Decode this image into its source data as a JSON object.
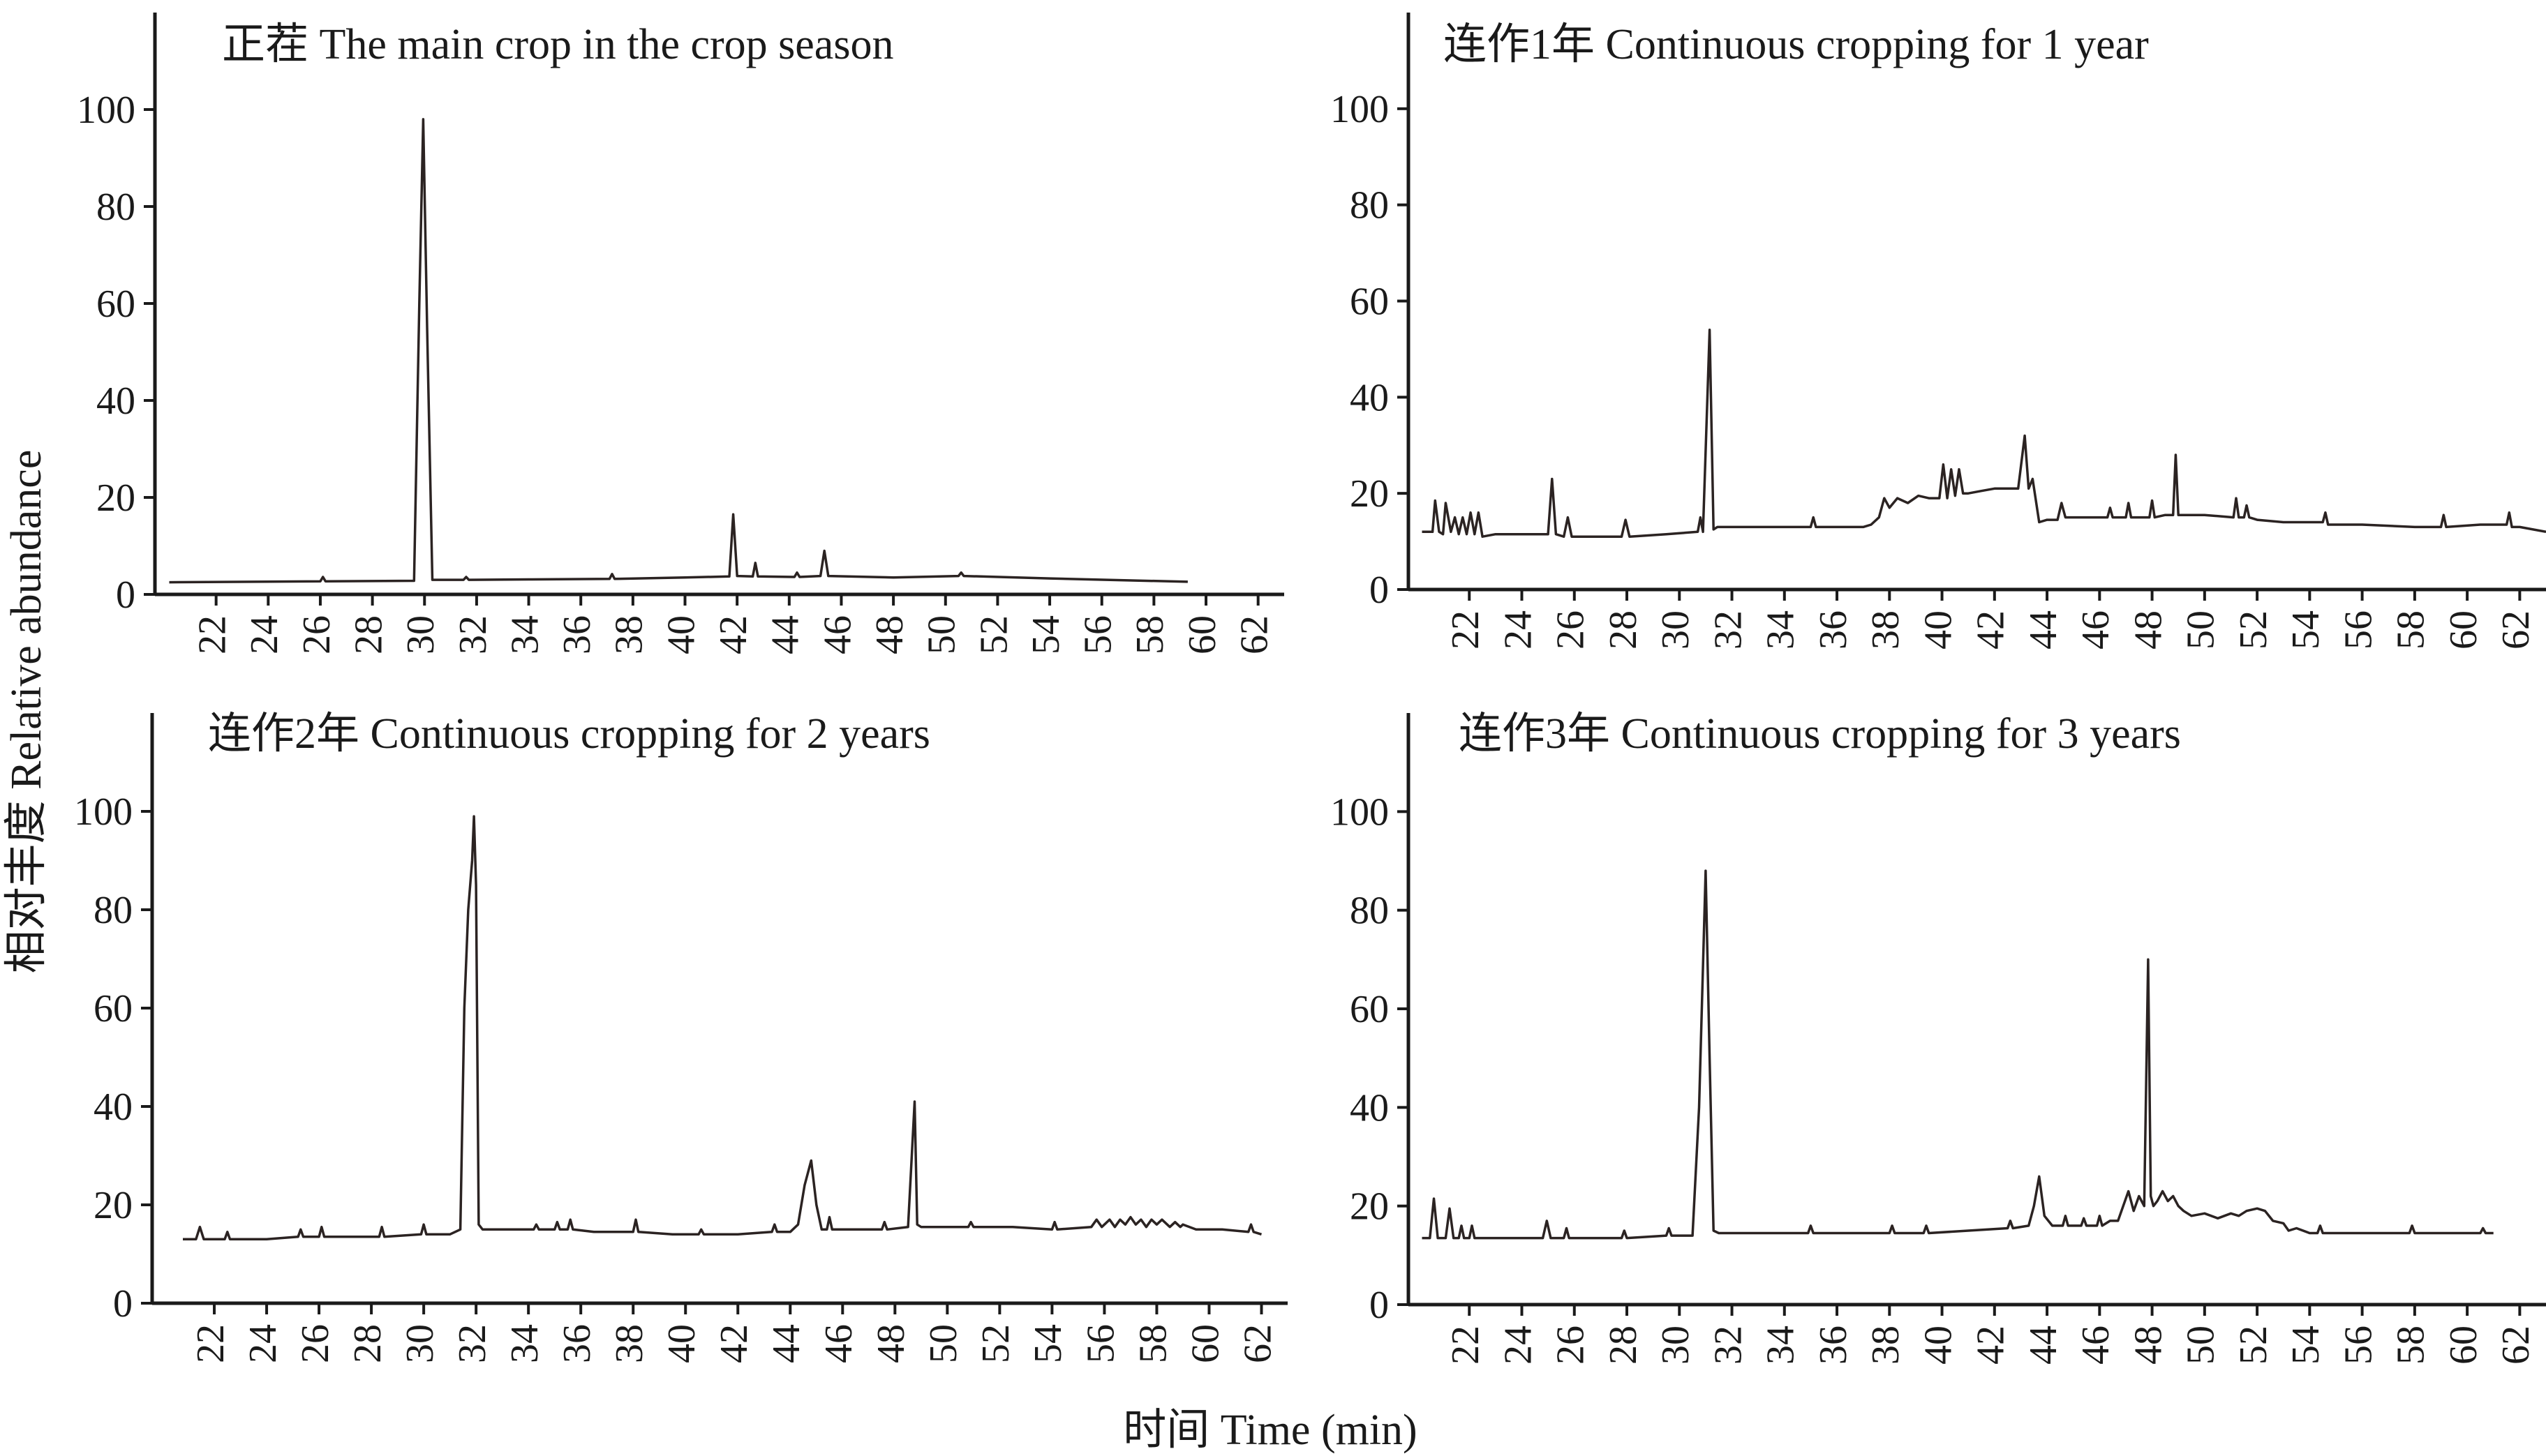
{
  "figure": {
    "ylabel": "相对丰度 Relative abundance",
    "xlabel": "时间 Time (min)"
  },
  "chart_data": [
    {
      "type": "line",
      "title": "正茬 The main crop in the crop season",
      "xlabel": "时间 Time (min)",
      "ylabel": "相对丰度 Relative abundance",
      "xlim": [
        20,
        63
      ],
      "ylim": [
        0,
        120
      ],
      "yticks": [
        0,
        20,
        40,
        60,
        80,
        100
      ],
      "xticks": [
        22,
        24,
        26,
        28,
        30,
        32,
        34,
        36,
        38,
        40,
        42,
        44,
        46,
        48,
        50,
        52,
        54,
        56,
        58,
        60,
        62
      ],
      "series": [
        {
          "name": "main crop",
          "x": [
            20.2,
            26.0,
            26.1,
            26.2,
            29.6,
            29.8,
            29.95,
            30.1,
            30.3,
            31.5,
            31.6,
            31.7,
            34,
            37.1,
            37.2,
            37.3,
            40.0,
            41.7,
            41.85,
            42.0,
            42.6,
            42.7,
            42.8,
            44.2,
            44.3,
            44.4,
            45.2,
            45.35,
            45.5,
            48,
            50.5,
            50.6,
            50.7,
            54,
            59.3
          ],
          "y": [
            2.5,
            2.7,
            3.6,
            2.7,
            2.8,
            60,
            98,
            55,
            3.0,
            3.0,
            3.6,
            3.0,
            3.1,
            3.2,
            4.2,
            3.2,
            3.5,
            3.7,
            16.5,
            3.8,
            3.7,
            6.5,
            3.7,
            3.6,
            4.5,
            3.6,
            3.8,
            9.0,
            3.8,
            3.5,
            3.8,
            4.5,
            3.8,
            3.3,
            2.6
          ]
        }
      ]
    },
    {
      "type": "line",
      "title": "连作1年 Continuous cropping for 1 year",
      "xlabel": "时间 Time (min)",
      "ylabel": "相对丰度 Relative abundance",
      "xlim": [
        20,
        63
      ],
      "ylim": [
        0,
        120
      ],
      "yticks": [
        0,
        20,
        40,
        60,
        80,
        100
      ],
      "xticks": [
        22,
        24,
        26,
        28,
        30,
        32,
        34,
        36,
        38,
        40,
        42,
        44,
        46,
        48,
        50,
        52,
        54,
        56,
        58,
        60,
        62
      ],
      "series": [
        {
          "name": "1 year",
          "x": [
            20.2,
            20.6,
            20.7,
            20.85,
            21.0,
            21.1,
            21.3,
            21.45,
            21.6,
            21.75,
            21.9,
            22.05,
            22.2,
            22.35,
            22.5,
            23,
            24,
            25.0,
            25.15,
            25.3,
            25.6,
            25.75,
            25.9,
            27.0,
            27.8,
            27.95,
            28.1,
            29.5,
            30.7,
            30.8,
            30.9,
            31.15,
            31.3,
            31.45,
            32.0,
            33.0,
            34.5,
            35.0,
            35.1,
            35.2,
            36.5,
            37.0,
            37.3,
            37.6,
            37.8,
            38.0,
            38.3,
            38.7,
            39.1,
            39.5,
            39.9,
            40.05,
            40.2,
            40.35,
            40.5,
            40.65,
            40.8,
            41.0,
            41.5,
            42.0,
            42.5,
            42.9,
            43.15,
            43.3,
            43.45,
            43.7,
            44.0,
            44.4,
            44.55,
            44.7,
            45.5,
            46.3,
            46.4,
            46.5,
            47.0,
            47.1,
            47.2,
            47.9,
            48.0,
            48.1,
            48.5,
            48.8,
            48.9,
            49.0,
            50.0,
            51.1,
            51.2,
            51.3,
            51.5,
            51.6,
            51.7,
            52.0,
            53.0,
            54.5,
            54.6,
            54.7,
            56.0,
            58.0,
            59.0,
            59.1,
            59.2,
            60.5,
            61.5,
            61.6,
            61.7,
            62.0,
            63.0
          ],
          "y": [
            12,
            12,
            18.5,
            12,
            11.5,
            18,
            12,
            15,
            11.5,
            15,
            11.5,
            16,
            11.5,
            16,
            11,
            11.5,
            11.5,
            11.5,
            23,
            11.5,
            11,
            15,
            11,
            11,
            11,
            14.5,
            11,
            11.5,
            12,
            15,
            12,
            54,
            12.5,
            13,
            13,
            13,
            13,
            13,
            15,
            13,
            13,
            13,
            13.5,
            15,
            19,
            17,
            19,
            18,
            19.5,
            19,
            19,
            26,
            19,
            25,
            19.5,
            25,
            20,
            20,
            20.5,
            21,
            21,
            21,
            32,
            21,
            23,
            14,
            14.5,
            14.5,
            18,
            15,
            15,
            15,
            17,
            15,
            15,
            18,
            15,
            15,
            18.5,
            15,
            15.5,
            15.5,
            28,
            15.5,
            15.5,
            15,
            19,
            15,
            15,
            17.5,
            15,
            14.5,
            14,
            14,
            16,
            13.5,
            13.5,
            13,
            13,
            15.5,
            13,
            13.5,
            13.5,
            16,
            13,
            13,
            12
          ]
        }
      ]
    },
    {
      "type": "line",
      "title": "连作2年 Continuous cropping for 2 years",
      "xlabel": "时间 Time (min)",
      "ylabel": "相对丰度 Relative abundance",
      "xlim": [
        20,
        63
      ],
      "ylim": [
        0,
        120
      ],
      "yticks": [
        0,
        20,
        40,
        60,
        80,
        100
      ],
      "xticks": [
        22,
        24,
        26,
        28,
        30,
        32,
        34,
        36,
        38,
        40,
        42,
        44,
        46,
        48,
        50,
        52,
        54,
        56,
        58,
        60,
        62
      ],
      "series": [
        {
          "name": "2 years",
          "x": [
            20.8,
            21.3,
            21.45,
            21.6,
            22.4,
            22.5,
            22.6,
            24.0,
            25.2,
            25.3,
            25.4,
            26.0,
            26.1,
            26.2,
            28.3,
            28.4,
            28.5,
            29.9,
            30.0,
            30.1,
            31.0,
            31.4,
            31.55,
            31.7,
            31.85,
            31.92,
            32.0,
            32.1,
            32.25,
            33.0,
            34.2,
            34.3,
            34.4,
            35.0,
            35.1,
            35.2,
            35.5,
            35.6,
            35.7,
            36.5,
            38.0,
            38.1,
            38.2,
            39.5,
            40.5,
            40.6,
            40.7,
            42.0,
            43.3,
            43.4,
            43.5,
            44.0,
            44.3,
            44.55,
            44.8,
            45.0,
            45.2,
            45.4,
            45.5,
            45.6,
            46.5,
            47.5,
            47.6,
            47.7,
            48.5,
            48.75,
            48.85,
            49.0,
            49.3,
            50.8,
            50.9,
            51.0,
            52.5,
            54.0,
            54.1,
            54.2,
            55.5,
            55.7,
            55.9,
            56.2,
            56.4,
            56.6,
            56.8,
            57.0,
            57.2,
            57.4,
            57.6,
            57.8,
            58.0,
            58.2,
            58.5,
            58.7,
            58.9,
            59.0,
            59.5,
            60.5,
            61.5,
            61.6,
            61.7,
            62.0
          ],
          "y": [
            13,
            13,
            15.5,
            13,
            13,
            14.5,
            13,
            13,
            13.5,
            15,
            13.5,
            13.5,
            15.5,
            13.5,
            13.5,
            15.5,
            13.5,
            14,
            16,
            14,
            14,
            15,
            60,
            80,
            90,
            99,
            85,
            16,
            15,
            15,
            15,
            16,
            15,
            15,
            16.5,
            15,
            15,
            17,
            15,
            14.5,
            14.5,
            17,
            14.5,
            14,
            14,
            15,
            14,
            14,
            14.5,
            16,
            14.5,
            14.5,
            16,
            24,
            29,
            20,
            15,
            15,
            17.5,
            15,
            15,
            15,
            16.5,
            15,
            15.5,
            41,
            16,
            15.5,
            15.5,
            15.5,
            16.5,
            15.5,
            15.5,
            15,
            16.5,
            15,
            15.5,
            17,
            15.5,
            17,
            15.5,
            17,
            16,
            17.5,
            16,
            17,
            15.5,
            17,
            16,
            17,
            15.5,
            16.5,
            15.5,
            16,
            15,
            15,
            14.5,
            16,
            14.5,
            14
          ]
        }
      ]
    },
    {
      "type": "line",
      "title": "连作3年 Continuous cropping for 3 years",
      "xlabel": "时间 Time (min)",
      "ylabel": "相对丰度 Relative abundance",
      "xlim": [
        20,
        63
      ],
      "ylim": [
        0,
        120
      ],
      "yticks": [
        0,
        20,
        40,
        60,
        80,
        100
      ],
      "xticks": [
        22,
        24,
        26,
        28,
        30,
        32,
        34,
        36,
        38,
        40,
        42,
        44,
        46,
        48,
        50,
        52,
        54,
        56,
        58,
        60,
        62
      ],
      "series": [
        {
          "name": "3 years",
          "x": [
            20.2,
            20.5,
            20.65,
            20.8,
            21.1,
            21.25,
            21.4,
            21.6,
            21.7,
            21.8,
            22.0,
            22.1,
            22.2,
            23.0,
            24.8,
            24.95,
            25.1,
            25.6,
            25.7,
            25.8,
            27.8,
            27.9,
            28.0,
            29.5,
            29.6,
            29.7,
            30.5,
            30.75,
            31.0,
            31.15,
            31.3,
            31.5,
            32.0,
            34.0,
            34.9,
            35.0,
            35.1,
            36.5,
            38.0,
            38.1,
            38.2,
            39.3,
            39.4,
            39.5,
            41.0,
            42.5,
            42.6,
            42.7,
            43.3,
            43.5,
            43.7,
            43.9,
            44.2,
            44.6,
            44.7,
            44.8,
            45.3,
            45.4,
            45.5,
            45.9,
            46.0,
            46.1,
            46.4,
            46.7,
            46.9,
            47.1,
            47.3,
            47.5,
            47.7,
            47.85,
            47.95,
            48.05,
            48.2,
            48.4,
            48.6,
            48.8,
            49.0,
            49.2,
            49.5,
            50.0,
            50.5,
            51.0,
            51.3,
            51.6,
            52.0,
            52.3,
            52.6,
            53.0,
            53.2,
            53.5,
            54.0,
            54.3,
            54.4,
            54.5,
            55.5,
            56.5,
            57.8,
            57.9,
            58.0,
            59.0,
            60.5,
            60.6,
            60.7,
            61.0
          ],
          "y": [
            13.5,
            13.5,
            21.5,
            13.5,
            13.5,
            19.5,
            13.5,
            13.5,
            16,
            13.5,
            13.5,
            16,
            13.5,
            13.5,
            13.5,
            17,
            13.5,
            13.5,
            15.5,
            13.5,
            13.5,
            15,
            13.5,
            14,
            15.5,
            14,
            14,
            40,
            88,
            50,
            15,
            14.5,
            14.5,
            14.5,
            14.5,
            16,
            14.5,
            14.5,
            14.5,
            16,
            14.5,
            14.5,
            16,
            14.5,
            15,
            15.5,
            17,
            15.5,
            16,
            20,
            26,
            18,
            16,
            16,
            18,
            16,
            16,
            17.5,
            16,
            16,
            18,
            16,
            17,
            17,
            20,
            23,
            19,
            22,
            20,
            70,
            22,
            20,
            21,
            23,
            21,
            22,
            20,
            19,
            18,
            18.5,
            17.5,
            18.5,
            18,
            19,
            19.5,
            19,
            17,
            16.5,
            15,
            15.5,
            14.5,
            14.5,
            16,
            14.5,
            14.5,
            14.5,
            14.5,
            16,
            14.5,
            14.5,
            14.5,
            15.5,
            14.5,
            14.5
          ]
        }
      ]
    }
  ]
}
